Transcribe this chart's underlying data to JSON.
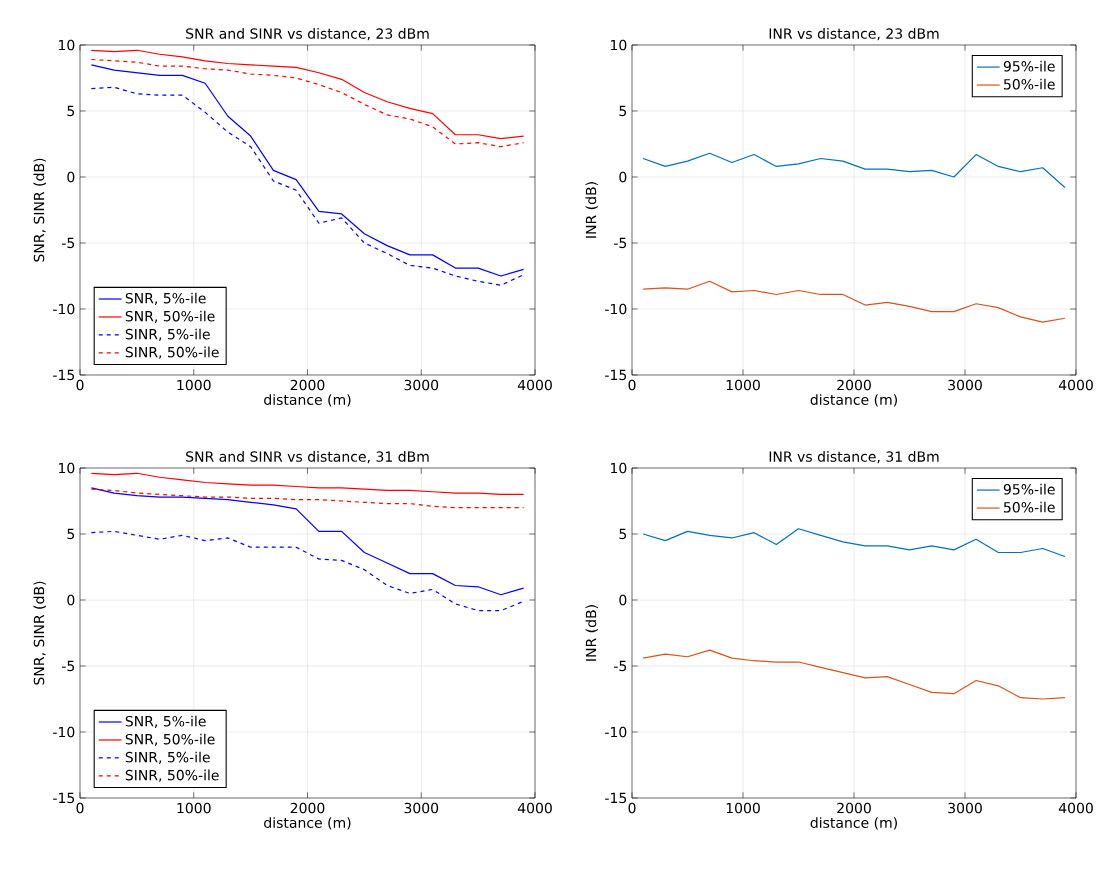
{
  "chart_data": [
    {
      "type": "line",
      "title": "SNR and SINR vs distance, 23 dBm",
      "xlabel": "distance (m)",
      "ylabel": "SNR, SINR (dB)",
      "x": [
        100,
        300,
        500,
        700,
        900,
        1100,
        1300,
        1500,
        1700,
        1900,
        2100,
        2300,
        2500,
        2700,
        2900,
        3100,
        3300,
        3500,
        3700,
        3900
      ],
      "series": [
        {
          "name": "SNR, 5%-ile",
          "color": "#0000ff",
          "line_style": "solid",
          "values": [
            8.5,
            8.1,
            7.9,
            7.7,
            7.7,
            7.1,
            4.6,
            3.1,
            0.5,
            -0.2,
            -2.6,
            -2.8,
            -4.3,
            -5.2,
            -5.9,
            -5.9,
            -6.9,
            -6.9,
            -7.5,
            -7.0
          ]
        },
        {
          "name": "SNR, 50%-ile",
          "color": "#ff0000",
          "line_style": "solid",
          "values": [
            9.6,
            9.5,
            9.6,
            9.3,
            9.1,
            8.8,
            8.6,
            8.5,
            8.4,
            8.3,
            7.9,
            7.4,
            6.4,
            5.7,
            5.2,
            4.8,
            3.2,
            3.2,
            2.9,
            3.1
          ]
        },
        {
          "name": "SINR, 5%-ile",
          "color": "#0000ff",
          "line_style": "dashed",
          "values": [
            6.7,
            6.8,
            6.3,
            6.2,
            6.2,
            4.9,
            3.4,
            2.3,
            -0.3,
            -1.0,
            -3.5,
            -3.1,
            -5.0,
            -5.8,
            -6.7,
            -6.9,
            -7.5,
            -7.9,
            -8.2,
            -7.4
          ]
        },
        {
          "name": "SINR, 50%-ile",
          "color": "#ff0000",
          "line_style": "dashed",
          "values": [
            8.9,
            8.8,
            8.7,
            8.4,
            8.4,
            8.2,
            8.1,
            7.8,
            7.7,
            7.5,
            7.0,
            6.4,
            5.5,
            4.7,
            4.4,
            3.8,
            2.5,
            2.6,
            2.3,
            2.6
          ]
        }
      ],
      "xlim": [
        0,
        4000
      ],
      "ylim": [
        -15,
        10
      ],
      "xticks": [
        0,
        1000,
        2000,
        3000,
        4000
      ],
      "yticks": [
        -15,
        -10,
        -5,
        0,
        5,
        10
      ],
      "grid": true,
      "legend": "bottom left"
    },
    {
      "type": "line",
      "title": "INR vs distance, 23 dBm",
      "xlabel": "distance (m)",
      "ylabel": "INR (dB)",
      "x": [
        100,
        300,
        500,
        700,
        900,
        1100,
        1300,
        1500,
        1700,
        1900,
        2100,
        2300,
        2500,
        2700,
        2900,
        3100,
        3300,
        3500,
        3700,
        3900
      ],
      "series": [
        {
          "name": "95%-ile",
          "color": "#0072bd",
          "line_style": "solid",
          "values": [
            1.4,
            0.8,
            1.2,
            1.8,
            1.1,
            1.7,
            0.8,
            1.0,
            1.4,
            1.2,
            0.6,
            0.6,
            0.4,
            0.5,
            0.0,
            1.7,
            0.8,
            0.4,
            0.7,
            -0.8
          ]
        },
        {
          "name": "50%-ile",
          "color": "#d95319",
          "line_style": "solid",
          "values": [
            -8.5,
            -8.4,
            -8.5,
            -7.9,
            -8.7,
            -8.6,
            -8.9,
            -8.6,
            -8.9,
            -8.9,
            -9.7,
            -9.5,
            -9.8,
            -10.2,
            -10.2,
            -9.6,
            -9.9,
            -10.6,
            -11.0,
            -10.7
          ]
        }
      ],
      "xlim": [
        0,
        4000
      ],
      "ylim": [
        -15,
        10
      ],
      "xticks": [
        0,
        1000,
        2000,
        3000,
        4000
      ],
      "yticks": [
        -15,
        -10,
        -5,
        0,
        5,
        10
      ],
      "grid": true,
      "legend": "top right"
    },
    {
      "type": "line",
      "title": "SNR and SINR vs distance, 31 dBm",
      "xlabel": "distance (m)",
      "ylabel": "SNR, SINR (dB)",
      "x": [
        100,
        300,
        500,
        700,
        900,
        1100,
        1300,
        1500,
        1700,
        1900,
        2100,
        2300,
        2500,
        2700,
        2900,
        3100,
        3300,
        3500,
        3700,
        3900
      ],
      "series": [
        {
          "name": "SNR, 5%-ile",
          "color": "#0000ff",
          "line_style": "solid",
          "values": [
            8.5,
            8.1,
            7.9,
            7.8,
            7.8,
            7.7,
            7.6,
            7.4,
            7.2,
            6.9,
            5.2,
            5.2,
            3.6,
            2.8,
            2.0,
            2.0,
            1.1,
            1.0,
            0.4,
            0.9
          ]
        },
        {
          "name": "SNR, 50%-ile",
          "color": "#ff0000",
          "line_style": "solid",
          "values": [
            9.6,
            9.5,
            9.6,
            9.3,
            9.1,
            8.9,
            8.8,
            8.7,
            8.7,
            8.6,
            8.5,
            8.5,
            8.4,
            8.3,
            8.3,
            8.2,
            8.1,
            8.1,
            8.0,
            8.0
          ]
        },
        {
          "name": "SINR, 5%-ile",
          "color": "#0000ff",
          "line_style": "dashed",
          "values": [
            5.1,
            5.2,
            4.9,
            4.6,
            4.9,
            4.5,
            4.7,
            4.0,
            4.0,
            4.0,
            3.1,
            3.0,
            2.3,
            1.1,
            0.5,
            0.8,
            -0.3,
            -0.8,
            -0.8,
            -0.1
          ]
        },
        {
          "name": "SINR, 50%-ile",
          "color": "#ff0000",
          "line_style": "dashed",
          "values": [
            8.4,
            8.3,
            8.1,
            8.0,
            7.9,
            7.8,
            7.8,
            7.7,
            7.7,
            7.6,
            7.6,
            7.5,
            7.4,
            7.3,
            7.3,
            7.1,
            7.0,
            7.0,
            7.0,
            7.0
          ]
        }
      ],
      "xlim": [
        0,
        4000
      ],
      "ylim": [
        -15,
        10
      ],
      "xticks": [
        0,
        1000,
        2000,
        3000,
        4000
      ],
      "yticks": [
        -15,
        -10,
        -5,
        0,
        5,
        10
      ],
      "grid": true,
      "legend": "bottom left"
    },
    {
      "type": "line",
      "title": "INR vs distance, 31 dBm",
      "xlabel": "distance (m)",
      "ylabel": "INR (dB)",
      "x": [
        100,
        300,
        500,
        700,
        900,
        1100,
        1300,
        1500,
        1700,
        1900,
        2100,
        2300,
        2500,
        2700,
        2900,
        3100,
        3300,
        3500,
        3700,
        3900
      ],
      "series": [
        {
          "name": "95%-ile",
          "color": "#0072bd",
          "line_style": "solid",
          "values": [
            5.0,
            4.5,
            5.2,
            4.9,
            4.7,
            5.1,
            4.2,
            5.4,
            4.9,
            4.4,
            4.1,
            4.1,
            3.8,
            4.1,
            3.8,
            4.6,
            3.6,
            3.6,
            3.9,
            3.3
          ]
        },
        {
          "name": "50%-ile",
          "color": "#d95319",
          "line_style": "solid",
          "values": [
            -4.4,
            -4.1,
            -4.3,
            -3.8,
            -4.4,
            -4.6,
            -4.7,
            -4.7,
            -5.1,
            -5.5,
            -5.9,
            -5.8,
            -6.4,
            -7.0,
            -7.1,
            -6.1,
            -6.5,
            -7.4,
            -7.5,
            -7.4
          ]
        }
      ],
      "xlim": [
        0,
        4000
      ],
      "ylim": [
        -15,
        10
      ],
      "xticks": [
        0,
        1000,
        2000,
        3000,
        4000
      ],
      "yticks": [
        -15,
        -10,
        -5,
        0,
        5,
        10
      ],
      "grid": true,
      "legend": "top right"
    }
  ]
}
